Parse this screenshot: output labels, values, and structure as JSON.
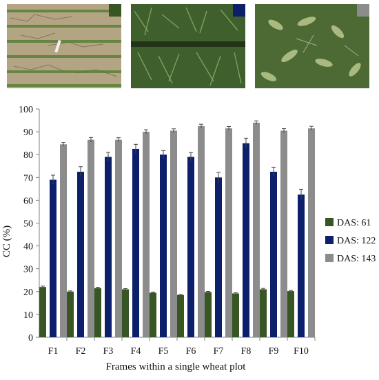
{
  "colors": {
    "das61": "#375623",
    "das122": "#0c1f6b",
    "das143": "#8c8c8c"
  },
  "photos": [
    {
      "name": "soil-early-wheat-photo",
      "marker": "das61"
    },
    {
      "name": "mid-wheat-canopy-photo",
      "marker": "das122"
    },
    {
      "name": "late-wheat-canopy-photo",
      "marker": "das143"
    }
  ],
  "chart_data": {
    "type": "bar",
    "xlabel": "Frames within a single wheat plot",
    "ylabel": "CC (%)",
    "ylim": [
      0,
      100
    ],
    "yticks": [
      0,
      10,
      20,
      30,
      40,
      50,
      60,
      70,
      80,
      90,
      100
    ],
    "grid": false,
    "legend_position": "right",
    "categories": [
      "F1",
      "F2",
      "F3",
      "F4",
      "F5",
      "F6",
      "F7",
      "F8",
      "F9",
      "F10"
    ],
    "series": [
      {
        "name": "DAS: 61",
        "color": "das61",
        "values": [
          22.0,
          20.0,
          21.5,
          21.0,
          19.5,
          18.5,
          19.8,
          19.2,
          21.0,
          20.2
        ],
        "errors": [
          0.4,
          0.3,
          0.4,
          0.3,
          0.3,
          0.3,
          0.3,
          0.3,
          0.4,
          0.3
        ]
      },
      {
        "name": "DAS: 122",
        "color": "das122",
        "values": [
          69.0,
          72.5,
          79.0,
          82.5,
          80.0,
          79.0,
          70.0,
          85.0,
          72.5,
          62.5
        ],
        "errors": [
          2.0,
          2.2,
          2.0,
          2.0,
          1.8,
          1.9,
          2.2,
          2.2,
          2.0,
          2.3
        ]
      },
      {
        "name": "DAS: 143",
        "color": "das143",
        "values": [
          84.5,
          86.5,
          86.5,
          90.0,
          90.5,
          92.5,
          91.5,
          94.0,
          90.5,
          91.5
        ],
        "errors": [
          0.8,
          1.0,
          0.9,
          0.9,
          0.8,
          0.8,
          0.8,
          0.8,
          0.9,
          0.9
        ]
      }
    ]
  }
}
